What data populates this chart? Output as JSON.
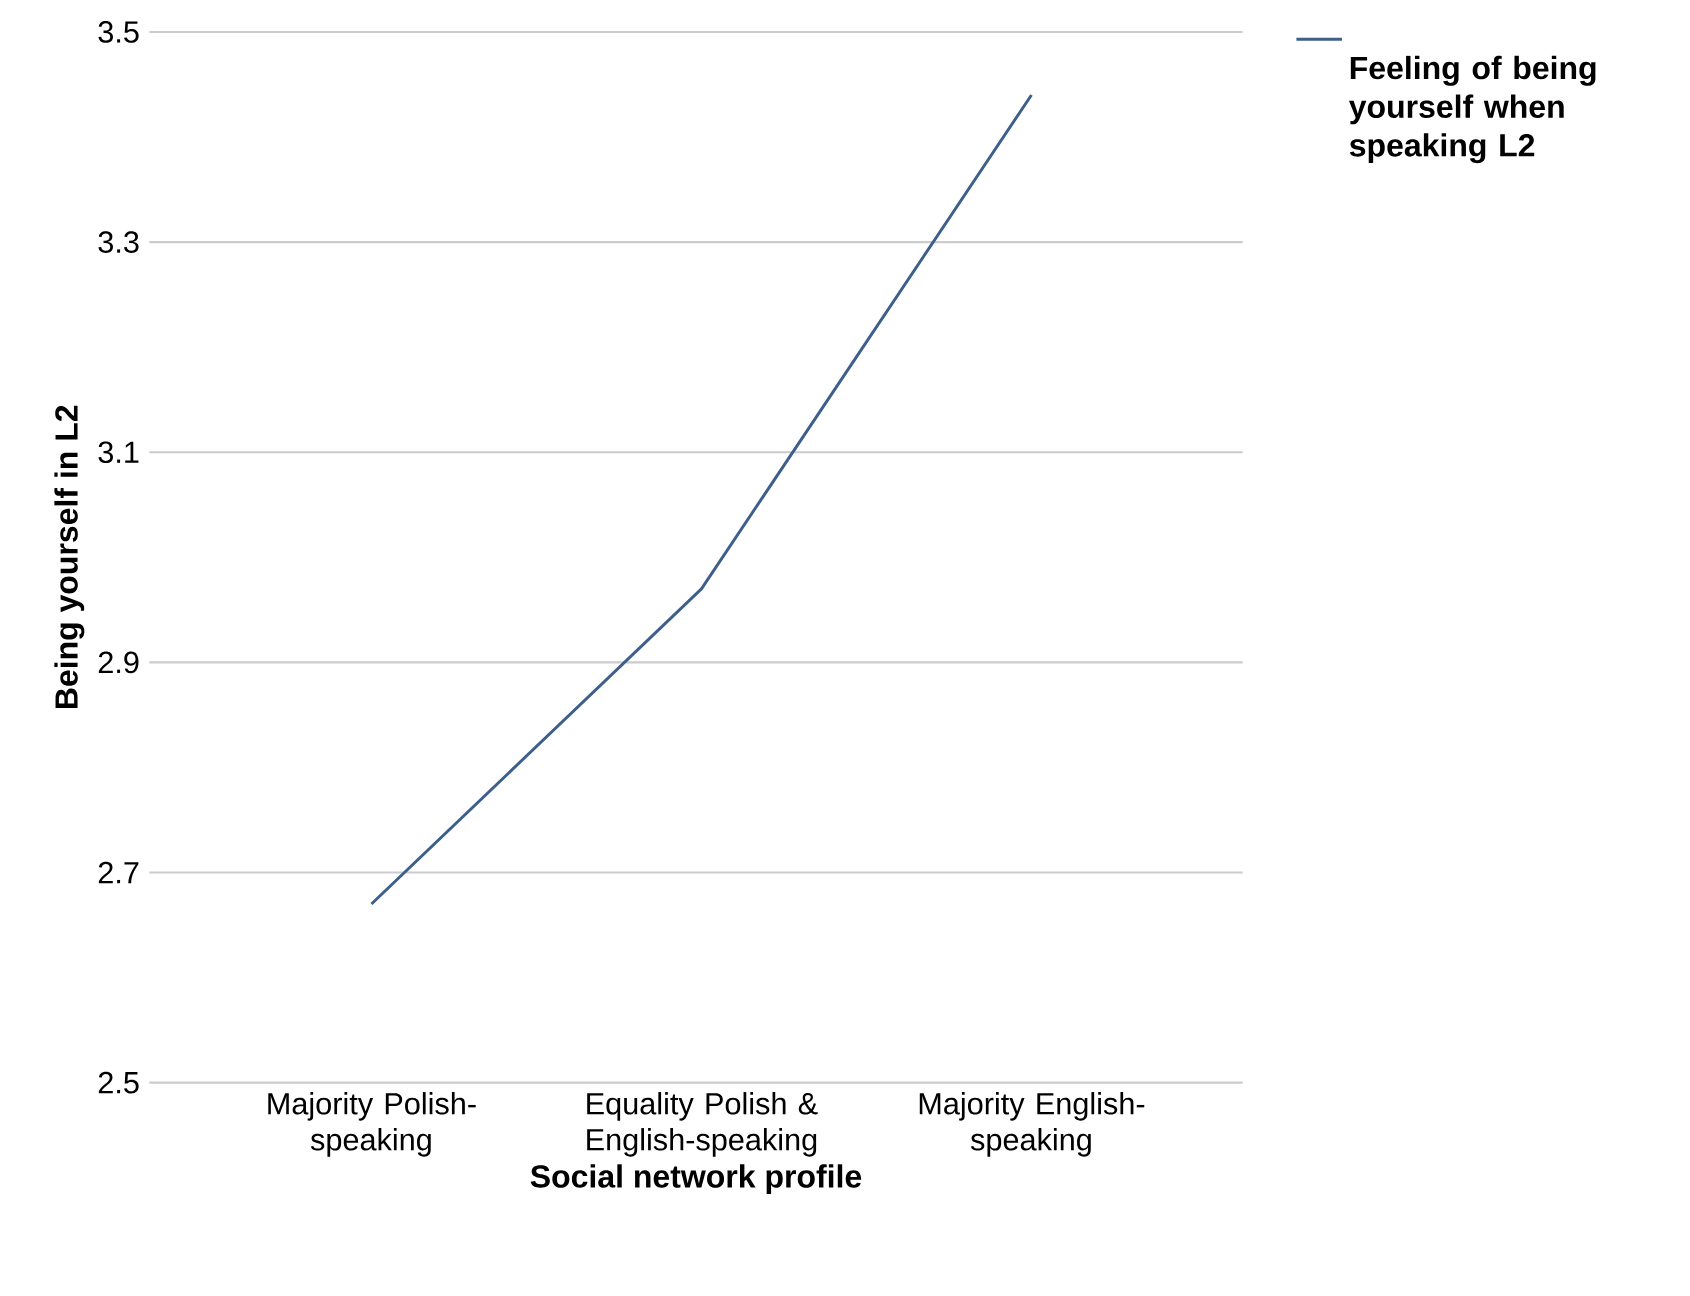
{
  "chart_data": {
    "type": "line",
    "xlabel": "Social network profile",
    "ylabel": "Being yourself in L2",
    "categories": [
      "Majority Polish-speaking",
      "Equality Polish & English-speaking",
      "Majority English-speaking"
    ],
    "series": [
      {
        "name": "Feeling of being yourself when speaking L2",
        "color": "#3c5f8c",
        "values": [
          2.67,
          2.97,
          3.44
        ]
      }
    ],
    "ylim": [
      2.5,
      3.5
    ],
    "yticks": [
      {
        "value": 2.5,
        "label": "2.5"
      },
      {
        "value": 2.7,
        "label": "2.7"
      },
      {
        "value": 2.9,
        "label": "2.9"
      },
      {
        "value": 3.1,
        "label": "3.1"
      },
      {
        "value": 3.3,
        "label": "3.3"
      },
      {
        "value": 3.5,
        "label": "3.5"
      }
    ],
    "grid": "y",
    "legend": "top right",
    "marker": "none",
    "line_style": "solid"
  }
}
